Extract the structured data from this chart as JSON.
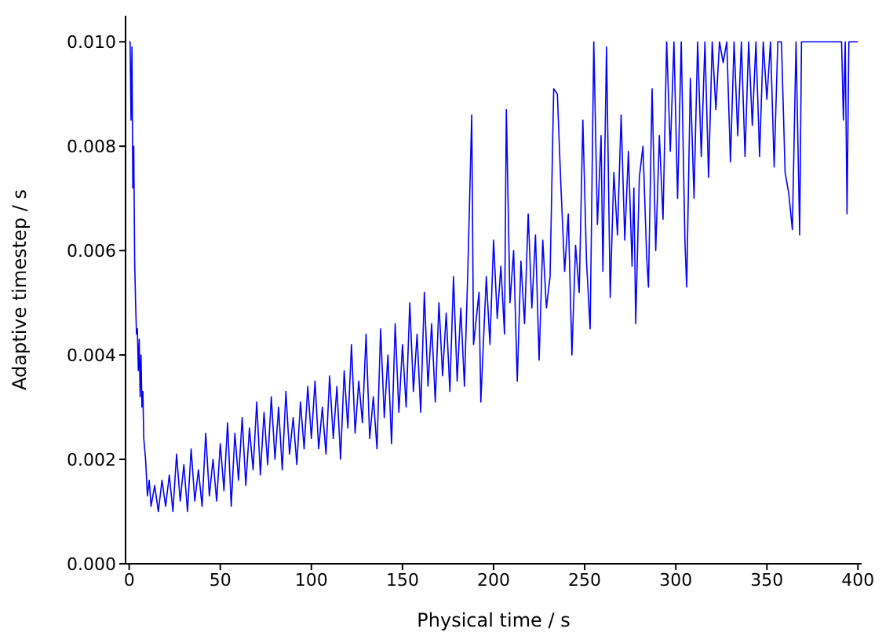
{
  "chart_data": {
    "type": "line",
    "xlabel": "Physical time / s",
    "ylabel": "Adaptive timestep / s",
    "xlim": [
      -2,
      402
    ],
    "ylim": [
      0,
      0.0105
    ],
    "xticks": [
      0,
      50,
      100,
      150,
      200,
      250,
      300,
      350,
      400
    ],
    "yticks": [
      {
        "value": 0,
        "label": "0.000"
      },
      {
        "value": 0.002,
        "label": "0.002"
      },
      {
        "value": 0.004,
        "label": "0.004"
      },
      {
        "value": 0.006,
        "label": "0.006"
      },
      {
        "value": 0.008,
        "label": "0.008"
      },
      {
        "value": 0.01,
        "label": "0.010"
      }
    ],
    "grid": false,
    "legend": false,
    "marker": "none",
    "line_style": "solid",
    "series": [
      {
        "color": "#0000ff",
        "x": [
          0,
          0.5,
          1,
          1.5,
          2,
          2.5,
          3,
          3.5,
          4,
          4.5,
          5,
          5.5,
          6,
          6.5,
          7,
          7.5,
          8,
          9,
          10,
          11,
          12,
          14,
          16,
          18,
          20,
          22,
          24,
          26,
          28,
          30,
          32,
          34,
          36,
          38,
          40,
          42,
          44,
          46,
          48,
          50,
          52,
          54,
          56,
          58,
          60,
          62,
          64,
          66,
          68,
          70,
          72,
          74,
          76,
          78,
          80,
          82,
          84,
          86,
          88,
          90,
          92,
          94,
          96,
          98,
          100,
          102,
          104,
          106,
          108,
          110,
          112,
          114,
          116,
          118,
          120,
          122,
          124,
          126,
          128,
          130,
          132,
          134,
          136,
          138,
          140,
          142,
          144,
          146,
          148,
          150,
          152,
          154,
          156,
          158,
          160,
          162,
          164,
          166,
          168,
          170,
          172,
          174,
          176,
          178,
          180,
          182,
          184,
          186,
          188,
          189,
          192,
          193,
          196,
          198,
          200,
          202,
          204,
          206,
          207,
          209,
          211,
          213,
          215,
          217,
          219,
          221,
          223,
          225,
          227,
          229,
          231,
          233,
          235,
          237,
          239,
          241,
          243,
          245,
          247,
          249,
          251,
          253,
          255,
          257,
          259,
          260,
          262,
          264,
          266,
          268,
          270,
          272,
          274,
          276,
          277,
          278,
          280,
          282,
          284,
          285,
          287,
          289,
          291,
          293,
          295,
          297,
          299,
          301,
          303,
          305,
          306,
          308,
          310,
          312,
          314,
          316,
          318,
          320,
          322,
          324,
          326,
          328,
          330,
          332,
          334,
          336,
          338,
          340,
          342,
          344,
          346,
          348,
          350,
          352,
          354,
          356,
          358,
          360,
          362,
          364,
          366,
          368,
          369,
          380,
          391,
          392,
          393,
          394,
          395,
          400
        ],
        "values": [
          0.01,
          0.01,
          0.0085,
          0.0099,
          0.0072,
          0.008,
          0.0058,
          0.005,
          0.0044,
          0.0045,
          0.0037,
          0.0043,
          0.0032,
          0.004,
          0.003,
          0.0033,
          0.0024,
          0.002,
          0.0013,
          0.0016,
          0.0011,
          0.0015,
          0.001,
          0.0016,
          0.0011,
          0.0017,
          0.001,
          0.0021,
          0.0012,
          0.0019,
          0.001,
          0.0022,
          0.0012,
          0.0018,
          0.0011,
          0.0025,
          0.0013,
          0.002,
          0.0012,
          0.0023,
          0.0014,
          0.0027,
          0.0011,
          0.0025,
          0.0016,
          0.0028,
          0.0015,
          0.0026,
          0.0018,
          0.0031,
          0.0017,
          0.0029,
          0.0019,
          0.0032,
          0.002,
          0.003,
          0.0018,
          0.0033,
          0.0021,
          0.0028,
          0.0019,
          0.0031,
          0.0022,
          0.0034,
          0.0024,
          0.0035,
          0.0022,
          0.003,
          0.0021,
          0.0036,
          0.0024,
          0.0034,
          0.002,
          0.0037,
          0.0026,
          0.0042,
          0.0025,
          0.0035,
          0.0027,
          0.0044,
          0.0024,
          0.0032,
          0.0022,
          0.0045,
          0.0028,
          0.004,
          0.0023,
          0.0046,
          0.0029,
          0.0042,
          0.003,
          0.005,
          0.0033,
          0.0044,
          0.0029,
          0.0052,
          0.0034,
          0.0046,
          0.0031,
          0.005,
          0.0036,
          0.0048,
          0.0033,
          0.0055,
          0.0035,
          0.0049,
          0.0034,
          0.0058,
          0.0086,
          0.0042,
          0.0052,
          0.0031,
          0.0055,
          0.0042,
          0.0062,
          0.0047,
          0.0057,
          0.0044,
          0.0087,
          0.005,
          0.006,
          0.0035,
          0.0058,
          0.0046,
          0.0067,
          0.0049,
          0.0063,
          0.0039,
          0.0062,
          0.0049,
          0.0055,
          0.0091,
          0.009,
          0.0072,
          0.0056,
          0.0067,
          0.004,
          0.0061,
          0.0052,
          0.0085,
          0.0058,
          0.0045,
          0.01,
          0.0065,
          0.0082,
          0.0056,
          0.0099,
          0.0051,
          0.0075,
          0.0063,
          0.0086,
          0.0062,
          0.0079,
          0.0057,
          0.0072,
          0.0046,
          0.0074,
          0.008,
          0.0059,
          0.0053,
          0.0091,
          0.006,
          0.0082,
          0.0066,
          0.01,
          0.0079,
          0.01,
          0.007,
          0.01,
          0.0062,
          0.0053,
          0.0093,
          0.007,
          0.01,
          0.0078,
          0.01,
          0.0074,
          0.01,
          0.0087,
          0.01,
          0.0096,
          0.01,
          0.0077,
          0.01,
          0.0082,
          0.01,
          0.0078,
          0.01,
          0.0084,
          0.01,
          0.0078,
          0.01,
          0.0089,
          0.01,
          0.0076,
          0.01,
          0.01,
          0.0075,
          0.0071,
          0.0064,
          0.01,
          0.0063,
          0.01,
          0.01,
          0.01,
          0.0085,
          0.01,
          0.0067,
          0.01,
          0.01
        ]
      }
    ]
  }
}
